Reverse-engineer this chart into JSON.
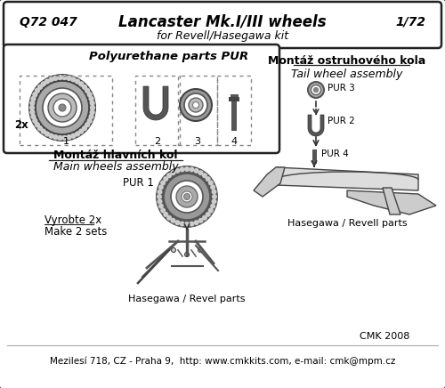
{
  "bg_color": "#ffffff",
  "border_color": "#222222",
  "title_q": "Q72 047",
  "title_main": "Lancaster Mk.I/III wheels",
  "title_scale": "1/72",
  "title_line2": "for Revell/Hasegawa kit",
  "pur_title": "Polyurethane parts PUR",
  "section1_title_cz": "Montáž hlavních kol",
  "section1_title_en": "Main wheels assembly",
  "pur1_label": "PUR 1",
  "sub2": "Vyrobte 2x",
  "sub2b": "Make 2 sets",
  "sub3": "Hasegawa / Revel parts",
  "section2_title_cz": "Montáž ostruhového kola",
  "section2_title_en": "Tail wheel assembly",
  "pur3_label": "PUR 3",
  "pur2_label": "PUR 2",
  "pur4_label": "PUR 4",
  "section2_footer": "Hasegawa / Revell parts",
  "footer": "Mezilesí 718, CZ - Praha 9,  http: www.cmkkits.com, e-mail: cmk@mpm.cz",
  "footer_right": "CMK 2008",
  "part_labels": [
    "1",
    "2",
    "3",
    "4"
  ],
  "two_x": "2x"
}
